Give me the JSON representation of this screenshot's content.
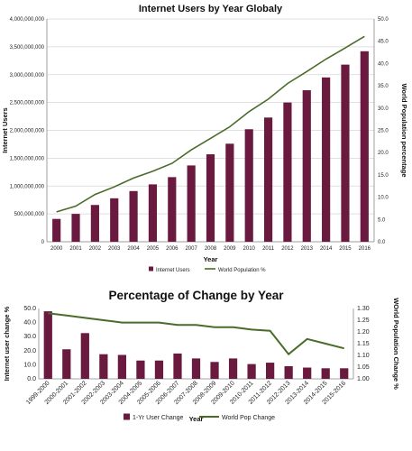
{
  "chart_data": [
    {
      "type": "bar",
      "title": "Internet Users by Year Globaly",
      "xlabel": "Year",
      "ylabel": "Internet Users",
      "y2label": "World Population percentage",
      "categories": [
        "2000",
        "2001",
        "2002",
        "2003",
        "2004",
        "2005",
        "2006",
        "2007",
        "2008",
        "2009",
        "2010",
        "2011",
        "2012",
        "2013",
        "2014",
        "2015",
        "2016"
      ],
      "ylim": [
        0,
        4000000000
      ],
      "yticks": [
        "0",
        "500,000,000",
        "1,000,000,000",
        "1,500,000,000",
        "2,000,000,000",
        "2,500,000,000",
        "3,000,000,000",
        "3,500,000,000",
        "4,000,000,000"
      ],
      "y2lim": [
        0,
        50
      ],
      "y2ticks": [
        "0.0",
        "5.0",
        "10.0",
        "15.0",
        "20.0",
        "25.0",
        "30.0",
        "35.0",
        "40.0",
        "45.0",
        "50.0"
      ],
      "legend_position": "bottom",
      "series": [
        {
          "name": "Internet Users",
          "kind": "bar",
          "axis": "left",
          "color": "#6b1a3f",
          "values": [
            410000000,
            500000000,
            660000000,
            780000000,
            910000000,
            1030000000,
            1160000000,
            1370000000,
            1570000000,
            1760000000,
            2020000000,
            2230000000,
            2500000000,
            2720000000,
            2950000000,
            3180000000,
            3420000000
          ]
        },
        {
          "name": "World Population %",
          "kind": "line",
          "axis": "right",
          "color": "#4a6b2a",
          "values": [
            6.7,
            8.0,
            10.6,
            12.3,
            14.3,
            15.8,
            17.6,
            20.6,
            23.2,
            25.8,
            29.2,
            32.0,
            35.5,
            38.2,
            41.0,
            43.5,
            46.1
          ]
        }
      ]
    },
    {
      "type": "bar",
      "title": "Percentage of Change by Year",
      "xlabel": "Year",
      "ylabel": "Internet user change %",
      "y2label": "WOrld Population Change %",
      "categories": [
        "1999-2000",
        "2000-2001",
        "2001-2002",
        "2002-2003",
        "2003-2004",
        "2004-2005",
        "2005-2006",
        "2006-2007",
        "2007-2008",
        "2008-2009",
        "2009-2010",
        "2010-2011",
        "2011-2012",
        "2012-2013",
        "2013-2014",
        "2014-2015",
        "2015-2016"
      ],
      "ylim": [
        0,
        50
      ],
      "yticks": [
        "0.0",
        "10.0",
        "20.0",
        "30.0",
        "40.0",
        "50.0"
      ],
      "y2lim": [
        1.0,
        1.3
      ],
      "y2ticks": [
        "1.00",
        "1.05",
        "1.10",
        "1.15",
        "1.20",
        "1.25",
        "1.30"
      ],
      "legend_position": "bottom",
      "series": [
        {
          "name": "1-Yr User Change",
          "kind": "bar",
          "axis": "left",
          "color": "#6b1a3f",
          "values": [
            48,
            21,
            32.5,
            17.5,
            17,
            13,
            13,
            18,
            14.5,
            12,
            14.5,
            10.5,
            11.5,
            9,
            8,
            7.5,
            7.5
          ]
        },
        {
          "name": "World Pop Change",
          "kind": "line",
          "axis": "right",
          "color": "#4a6b2a",
          "values": [
            1.28,
            1.27,
            1.26,
            1.25,
            1.24,
            1.24,
            1.24,
            1.23,
            1.23,
            1.22,
            1.22,
            1.21,
            1.205,
            1.105,
            1.17,
            1.15,
            1.13
          ]
        }
      ]
    }
  ]
}
